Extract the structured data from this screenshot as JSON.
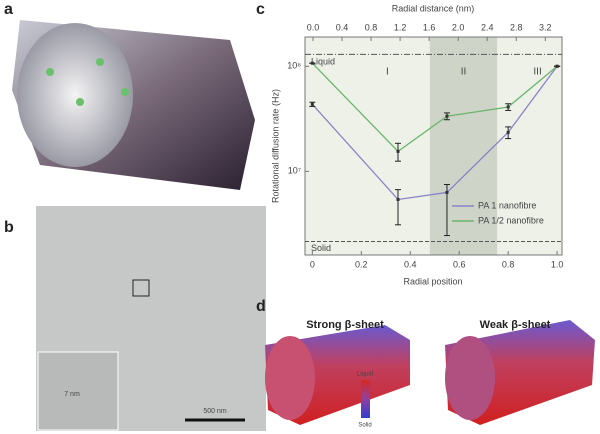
{
  "figure": {
    "panel_labels": [
      "a",
      "b",
      "c",
      "d"
    ],
    "scale_bar": "500 nm",
    "inset_label": "7 nm",
    "d_titles": [
      "Strong β-sheet",
      "Weak β-sheet"
    ],
    "colorbar_labels": [
      "Liquid",
      "Solid"
    ]
  },
  "chart_data": {
    "type": "line",
    "log_y": true,
    "xlabel": "Radial position",
    "x2label": "Radial distance (nm)",
    "ylabel": "Rotational diffusion rate (Hz)",
    "xlim": [
      -0.03,
      1.02
    ],
    "xticks": [
      0,
      0.2,
      0.4,
      0.6,
      0.8,
      {
        "value": 1,
        "label": "1.0"
      }
    ],
    "x2lim": [
      -0.11,
      3.43
    ],
    "x2ticks": [
      {
        "value": 0,
        "label": "0.0"
      },
      0.4,
      0.8,
      1.2,
      1.6,
      {
        "value": 2,
        "label": "2.0"
      },
      2.4,
      2.8,
      3.2
    ],
    "ylim": [
      1600000,
      190000000
    ],
    "yticks": [
      {
        "value": 10000000,
        "label": "10⁷"
      },
      {
        "value": 100000000,
        "label": "10⁸"
      }
    ],
    "shaded_region": [
      0.48,
      0.755
    ],
    "region_labels": [
      "I",
      "II",
      "III"
    ],
    "reference_lines": [
      {
        "label": "Liquid",
        "value": 130000000,
        "style": "dashdot"
      },
      {
        "label": "Solid",
        "value": 2150000,
        "style": "dashed"
      }
    ],
    "x": [
      0,
      0.35,
      0.55,
      0.8,
      1
    ],
    "series": [
      {
        "name": "PA 1 nanofibre",
        "color": "#8a84c8",
        "values": [
          43500000,
          5400000,
          6300000,
          23500000,
          100000000
        ],
        "errors_plus": [
          2000000,
          1300000,
          1200000,
          3000000,
          0
        ],
        "errors_minus": [
          2000000,
          2300000,
          3850000,
          3000000,
          0
        ]
      },
      {
        "name": "PA 1/2 nanofibre",
        "color": "#6bb56b",
        "values": [
          107000000,
          15500000,
          33500000,
          41000000,
          100000000
        ],
        "errors_plus": [
          0,
          3000000,
          2500000,
          3000000,
          0
        ],
        "errors_minus": [
          0,
          3000000,
          2500000,
          3000000,
          0
        ]
      }
    ]
  }
}
